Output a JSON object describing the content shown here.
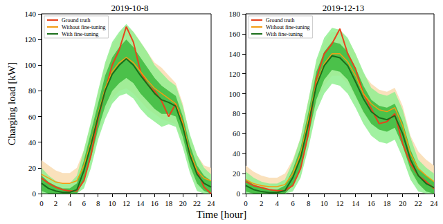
{
  "xlabel": "Time [hour]",
  "chart_data": [
    {
      "type": "line",
      "title": "2019-10-8",
      "ylabel": "Charging load [kW]",
      "x": [
        0,
        1,
        2,
        3,
        4,
        5,
        6,
        7,
        8,
        9,
        10,
        11,
        12,
        13,
        14,
        15,
        16,
        17,
        18,
        19,
        20,
        21,
        22,
        23,
        24
      ],
      "xlim": [
        0,
        24
      ],
      "xticks": [
        0,
        2,
        4,
        6,
        8,
        10,
        12,
        14,
        16,
        18,
        20,
        22,
        24
      ],
      "ylim": [
        0,
        140
      ],
      "yticks": [
        0,
        20,
        40,
        60,
        80,
        100,
        120,
        140
      ],
      "grid": false,
      "legend": "upper left",
      "series": [
        {
          "type": "band",
          "color": "#f9dcb0",
          "lower": [
            4,
            2,
            0,
            0,
            0,
            0,
            10,
            26,
            46,
            64,
            74,
            80,
            82,
            78,
            72,
            66,
            62,
            58,
            56,
            54,
            40,
            20,
            6,
            2,
            0
          ],
          "upper": [
            26,
            22,
            18,
            16,
            16,
            20,
            34,
            54,
            78,
            100,
            116,
            124,
            130,
            126,
            118,
            110,
            102,
            98,
            92,
            86,
            70,
            44,
            30,
            22,
            20
          ]
        },
        {
          "type": "band",
          "color": "#90ee90",
          "lower": [
            0,
            0,
            0,
            0,
            0,
            0,
            4,
            20,
            42,
            58,
            70,
            76,
            78,
            74,
            66,
            60,
            56,
            52,
            54,
            52,
            36,
            16,
            2,
            0,
            0
          ],
          "upper": [
            20,
            14,
            10,
            8,
            8,
            14,
            34,
            56,
            80,
            102,
            118,
            126,
            132,
            126,
            118,
            110,
            100,
            94,
            88,
            84,
            68,
            46,
            30,
            20,
            15
          ]
        },
        {
          "type": "band",
          "color": "#3cb83c",
          "lower": [
            2,
            0,
            0,
            0,
            0,
            0,
            10,
            28,
            50,
            68,
            80,
            86,
            90,
            86,
            78,
            72,
            66,
            62,
            62,
            60,
            44,
            22,
            8,
            2,
            0
          ],
          "upper": [
            14,
            9,
            6,
            4,
            4,
            8,
            26,
            48,
            70,
            92,
            106,
            114,
            120,
            114,
            106,
            98,
            90,
            84,
            80,
            76,
            60,
            38,
            22,
            14,
            10
          ]
        },
        {
          "type": "line",
          "name": "Ground truth",
          "color": "#e8421c",
          "values": [
            12,
            8,
            5,
            3,
            2,
            2,
            10,
            30,
            58,
            80,
            100,
            112,
            130,
            118,
            95,
            85,
            80,
            72,
            60,
            70,
            55,
            30,
            18,
            5,
            0
          ]
        },
        {
          "type": "line",
          "name": "Without fine-tuning",
          "color": "#f39c12",
          "values": [
            15,
            12,
            9,
            8,
            8,
            10,
            22,
            40,
            62,
            82,
            95,
            102,
            106,
            102,
            95,
            88,
            82,
            78,
            74,
            70,
            55,
            32,
            18,
            12,
            10
          ]
        },
        {
          "type": "line",
          "name": "With fine-tuning",
          "color": "#1a6e1a",
          "values": [
            8,
            4,
            2,
            1,
            1,
            3,
            18,
            38,
            60,
            80,
            93,
            100,
            105,
            100,
            92,
            85,
            78,
            73,
            71,
            68,
            52,
            30,
            15,
            8,
            5
          ]
        }
      ]
    },
    {
      "type": "line",
      "title": "2019-12-13",
      "x": [
        0,
        1,
        2,
        3,
        4,
        5,
        6,
        7,
        8,
        9,
        10,
        11,
        12,
        13,
        14,
        15,
        16,
        17,
        18,
        19,
        20,
        21,
        22,
        23,
        24
      ],
      "xlim": [
        0,
        24
      ],
      "xticks": [
        0,
        2,
        4,
        6,
        8,
        10,
        12,
        14,
        16,
        18,
        20,
        22,
        24
      ],
      "ylim": [
        0,
        180
      ],
      "yticks": [
        0,
        20,
        40,
        60,
        80,
        100,
        120,
        140,
        160,
        180
      ],
      "grid": false,
      "legend": "upper left",
      "series": [
        {
          "type": "band",
          "color": "#f9dcb0",
          "lower": [
            2,
            0,
            0,
            0,
            0,
            0,
            8,
            24,
            56,
            90,
            108,
            118,
            118,
            110,
            96,
            80,
            70,
            64,
            62,
            66,
            48,
            22,
            8,
            2,
            0
          ],
          "upper": [
            28,
            22,
            18,
            16,
            16,
            20,
            34,
            56,
            94,
            130,
            152,
            162,
            162,
            154,
            140,
            120,
            110,
            104,
            102,
            106,
            88,
            58,
            42,
            34,
            28
          ]
        },
        {
          "type": "band",
          "color": "#90ee90",
          "lower": [
            0,
            0,
            0,
            0,
            0,
            0,
            2,
            16,
            46,
            82,
            100,
            110,
            108,
            100,
            86,
            70,
            58,
            52,
            50,
            54,
            36,
            14,
            2,
            0,
            0
          ],
          "upper": [
            22,
            16,
            12,
            10,
            10,
            14,
            32,
            56,
            94,
            134,
            156,
            166,
            164,
            156,
            140,
            122,
            106,
            100,
            98,
            102,
            84,
            56,
            34,
            26,
            20
          ]
        },
        {
          "type": "band",
          "color": "#3cb83c",
          "lower": [
            2,
            0,
            0,
            0,
            0,
            0,
            8,
            26,
            58,
            94,
            114,
            124,
            122,
            114,
            98,
            82,
            70,
            64,
            62,
            66,
            48,
            24,
            10,
            2,
            0
          ],
          "upper": [
            14,
            9,
            6,
            4,
            4,
            8,
            24,
            46,
            82,
            122,
            142,
            152,
            150,
            142,
            126,
            108,
            94,
            88,
            86,
            90,
            72,
            44,
            26,
            18,
            12
          ]
        },
        {
          "type": "line",
          "name": "Ground truth",
          "color": "#e8421c",
          "values": [
            12,
            8,
            6,
            4,
            3,
            3,
            8,
            25,
            60,
            115,
            140,
            150,
            165,
            140,
            125,
            100,
            85,
            70,
            72,
            80,
            50,
            30,
            18,
            12,
            5
          ]
        },
        {
          "type": "line",
          "name": "Without fine-tuning",
          "color": "#f39c12",
          "values": [
            14,
            10,
            8,
            7,
            7,
            9,
            20,
            40,
            75,
            110,
            130,
            140,
            140,
            132,
            118,
            100,
            90,
            84,
            82,
            86,
            68,
            40,
            25,
            18,
            12
          ]
        },
        {
          "type": "line",
          "name": "With fine-tuning",
          "color": "#1a6e1a",
          "values": [
            8,
            4,
            2,
            1,
            1,
            3,
            16,
            36,
            70,
            108,
            128,
            138,
            136,
            128,
            112,
            95,
            82,
            76,
            74,
            78,
            60,
            34,
            18,
            10,
            6
          ]
        }
      ]
    }
  ]
}
